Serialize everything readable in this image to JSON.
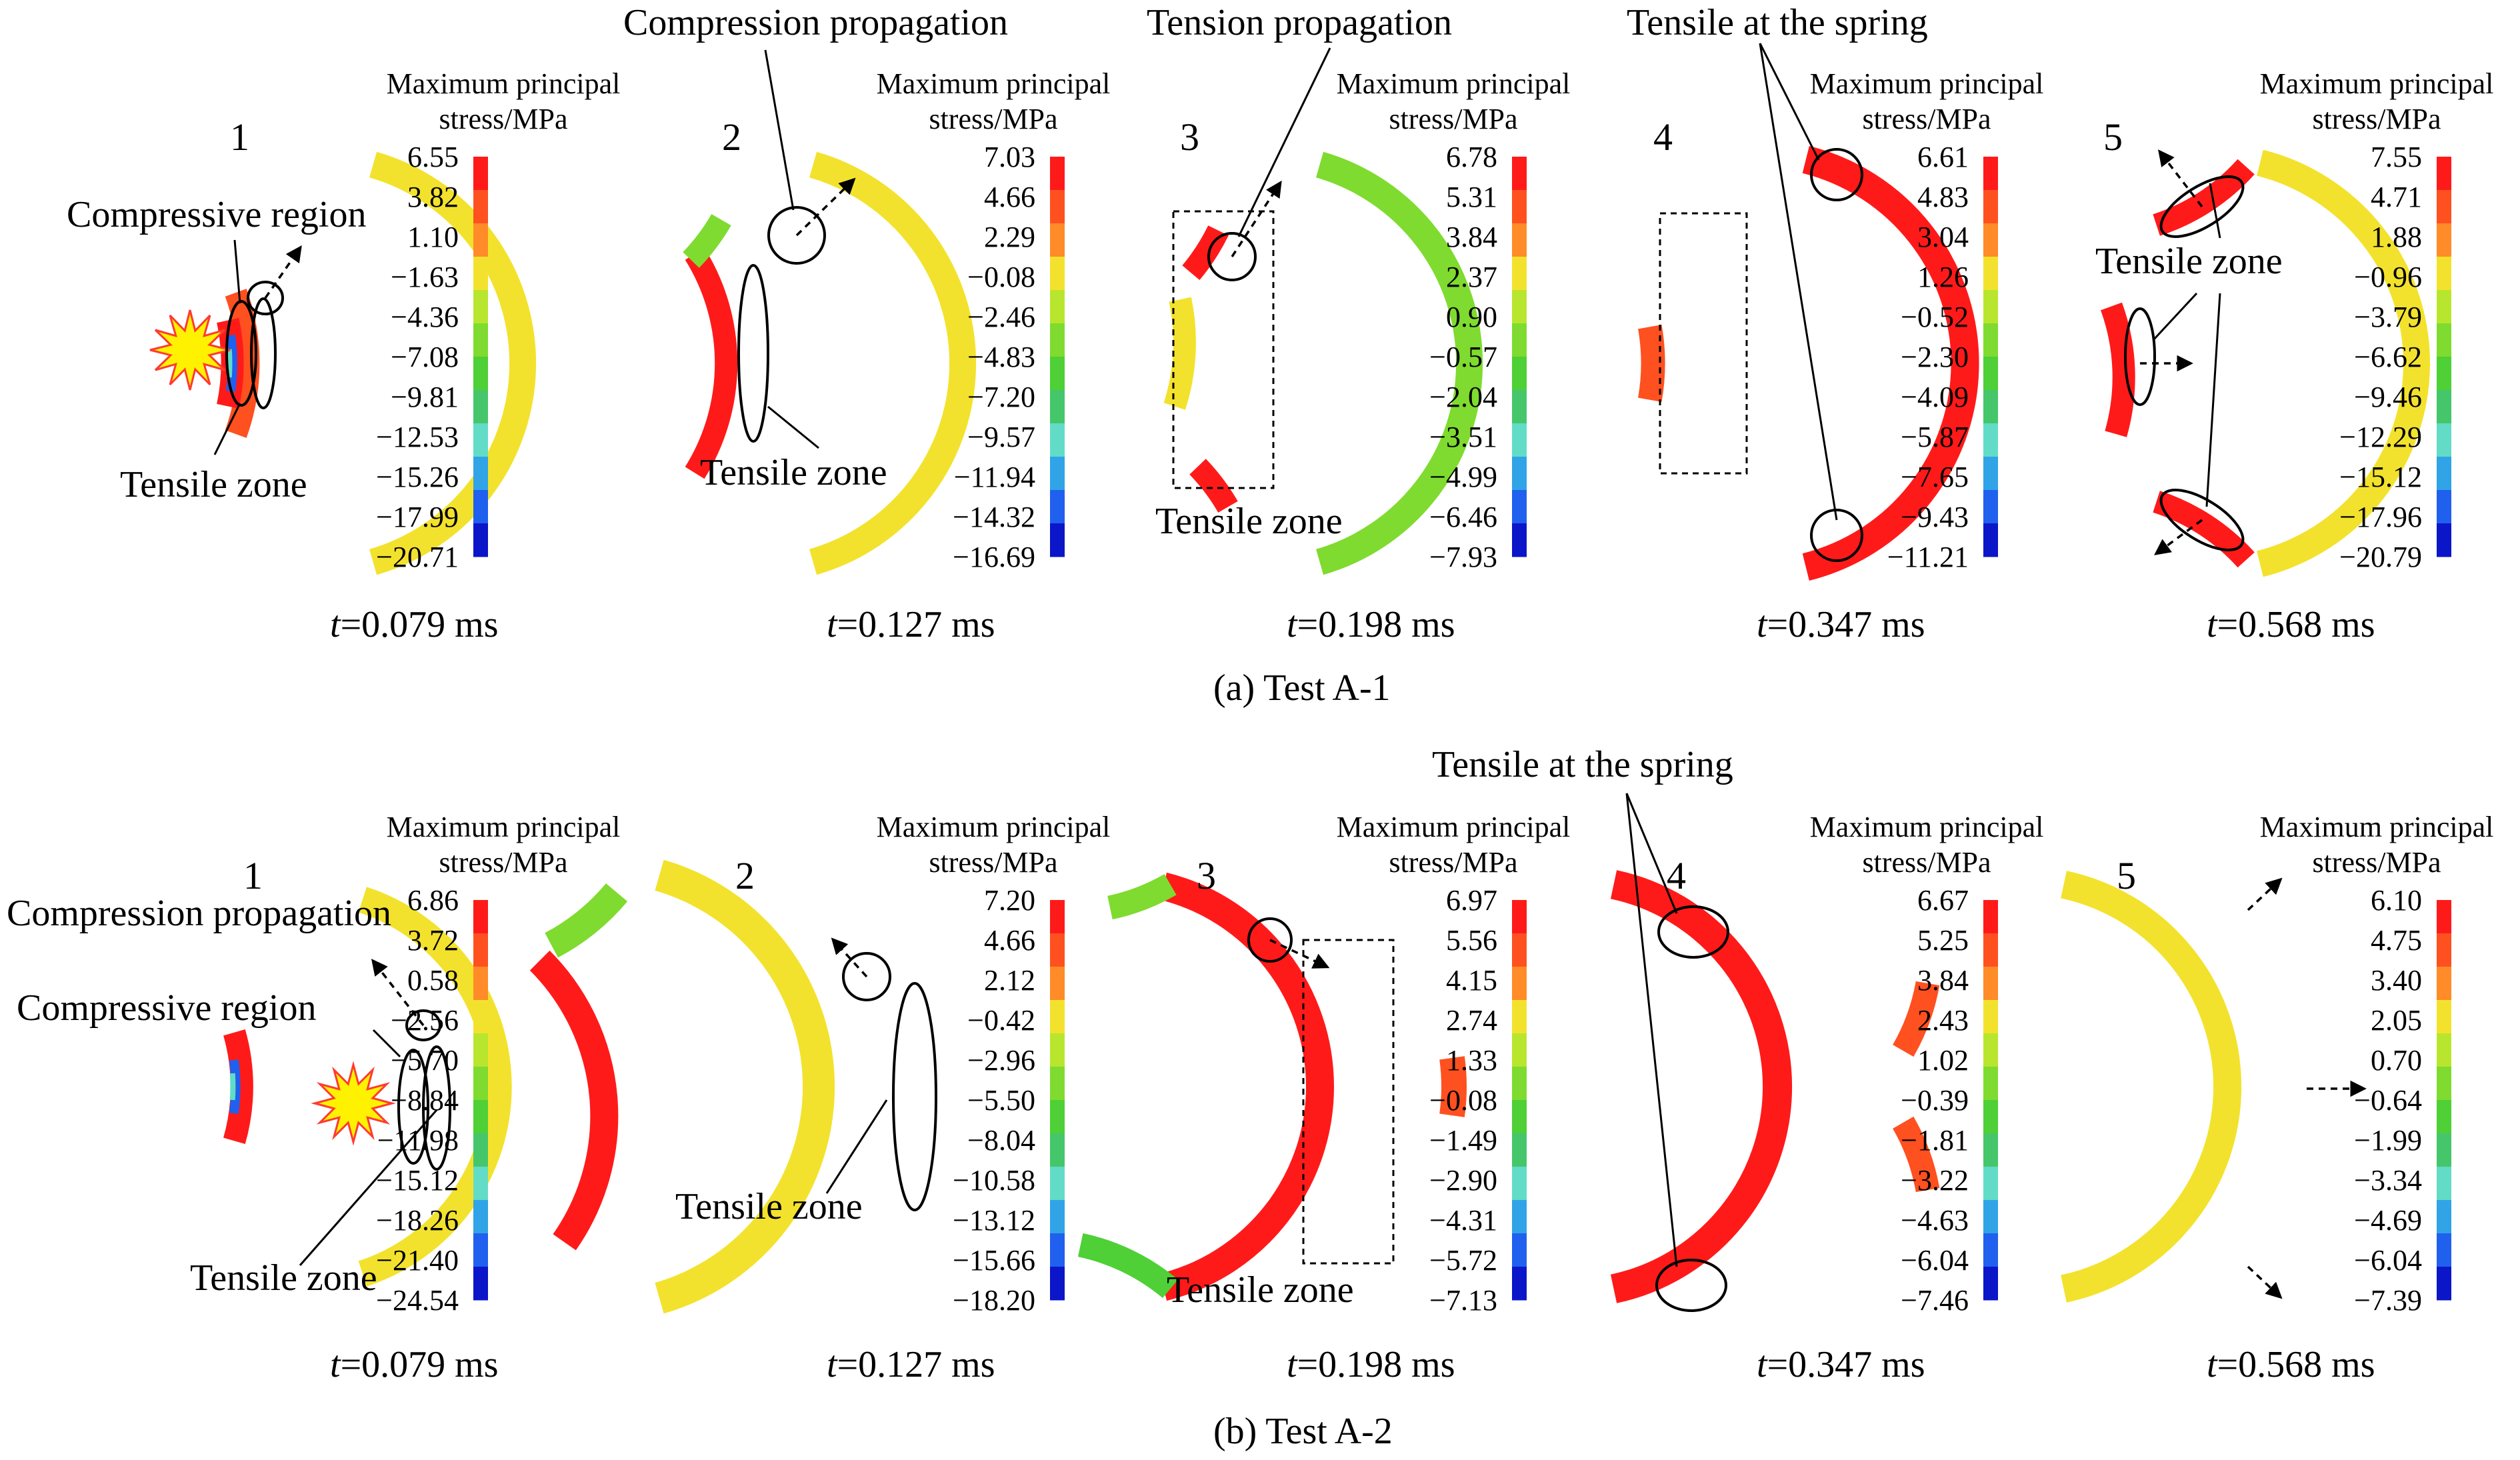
{
  "colorbar": {
    "title_line1": "Maximum principal",
    "title_line2": "stress/MPa",
    "colors": [
      "#ff1a1a",
      "#ff5020",
      "#ff8c28",
      "#f3e22d",
      "#b8e62e",
      "#7fdb2f",
      "#4ed036",
      "#46c66a",
      "#62dcc6",
      "#30a4e6",
      "#2060ee",
      "#0b16c8"
    ]
  },
  "time_prefix": "t",
  "rows": [
    {
      "id": "a",
      "caption": "(a) Test A-1",
      "panels": [
        {
          "label": "1",
          "time": "=0.079 ms",
          "ticks": [
            "6.55",
            "3.82",
            "1.10",
            "−1.63",
            "−4.36",
            "−7.08",
            "−9.81",
            "−12.53",
            "−15.26",
            "−17.99",
            "−20.71"
          ]
        },
        {
          "label": "2",
          "time": "=0.127 ms",
          "ticks": [
            "7.03",
            "4.66",
            "2.29",
            "−0.08",
            "−2.46",
            "−4.83",
            "−7.20",
            "−9.57",
            "−11.94",
            "−14.32",
            "−16.69"
          ]
        },
        {
          "label": "3",
          "time": "=0.198 ms",
          "ticks": [
            "6.78",
            "5.31",
            "3.84",
            "2.37",
            "0.90",
            "−0.57",
            "−2.04",
            "−3.51",
            "−4.99",
            "−6.46",
            "−7.93"
          ]
        },
        {
          "label": "4",
          "time": "=0.347 ms",
          "ticks": [
            "6.61",
            "4.83",
            "3.04",
            "1.26",
            "−0.52",
            "−2.30",
            "−4.09",
            "−5.87",
            "−7.65",
            "−9.43",
            "−11.21"
          ]
        },
        {
          "label": "5",
          "time": "=0.568 ms",
          "ticks": [
            "7.55",
            "4.71",
            "1.88",
            "−0.96",
            "−3.79",
            "−6.62",
            "−9.46",
            "−12.29",
            "−15.12",
            "−17.96",
            "−20.79"
          ]
        }
      ],
      "annotations": {
        "compressive_region": "Compressive region",
        "tensile_zone_1": "Tensile zone",
        "compression_propagation": "Compression propagation",
        "tensile_zone_2": "Tensile zone",
        "tension_propagation": "Tension propagation",
        "tensile_zone_3": "Tensile zone",
        "tensile_at_spring": "Tensile at the spring",
        "tensile_zone_5": "Tensile zone"
      }
    },
    {
      "id": "b",
      "caption": "(b) Test A-2",
      "panels": [
        {
          "label": "1",
          "time": "=0.079 ms",
          "ticks": [
            "6.86",
            "3.72",
            "0.58",
            "−2.56",
            "−5.70",
            "−8.84",
            "−11.98",
            "−15.12",
            "−18.26",
            "−21.40",
            "−24.54"
          ]
        },
        {
          "label": "2",
          "time": "=0.127 ms",
          "ticks": [
            "7.20",
            "4.66",
            "2.12",
            "−0.42",
            "−2.96",
            "−5.50",
            "−8.04",
            "−10.58",
            "−13.12",
            "−15.66",
            "−18.20"
          ]
        },
        {
          "label": "3",
          "time": "=0.198 ms",
          "ticks": [
            "6.97",
            "5.56",
            "4.15",
            "2.74",
            "1.33",
            "−0.08",
            "−1.49",
            "−2.90",
            "−4.31",
            "−5.72",
            "−7.13"
          ]
        },
        {
          "label": "4",
          "time": "=0.347 ms",
          "ticks": [
            "6.67",
            "5.25",
            "3.84",
            "2.43",
            "1.02",
            "−0.39",
            "−1.81",
            "−3.22",
            "−4.63",
            "−6.04",
            "−7.46"
          ]
        },
        {
          "label": "5",
          "time": "=0.568 ms",
          "ticks": [
            "6.10",
            "4.75",
            "3.40",
            "2.05",
            "0.70",
            "−0.64",
            "−1.99",
            "−3.34",
            "−4.69",
            "−6.04",
            "−7.39"
          ]
        }
      ],
      "annotations": {
        "compression_propagation": "Compression propagation",
        "compressive_region": "Compressive region",
        "tensile_zone_1": "Tensile zone",
        "tensile_zone_2": "Tensile zone",
        "tensile_at_spring": "Tensile at the spring",
        "tensile_zone_3": "Tensile zone"
      }
    }
  ]
}
